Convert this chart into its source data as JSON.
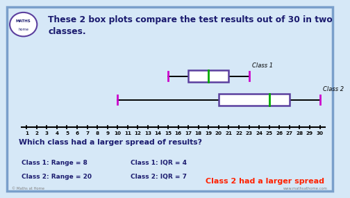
{
  "title": "These 2 box plots compare the test results out of 30 in two\nclasses.",
  "class1": {
    "label": "Class 1",
    "min": 15,
    "q1": 17,
    "median": 19,
    "q3": 21,
    "max": 23,
    "range_text": "Class 1: Range = 8",
    "iqr_text": "Class 1: IQR = 4"
  },
  "class2": {
    "label": "Class 2",
    "min": 10,
    "q1": 20,
    "median": 25,
    "q3": 27,
    "max": 30,
    "range_text": "Class 2: Range = 20",
    "iqr_text": "Class 2: IQR = 7"
  },
  "axis_min": 1,
  "axis_max": 30,
  "question": "Which class had a larger spread of results?",
  "answer": "Class 2 had a larger spread",
  "box_color": "#5b3f9e",
  "median_color": "#00aa00",
  "whisker_color": "#cc00cc",
  "bg_color": "#d6e8f7",
  "border_color": "#7a9fcb",
  "text_color_dark": "#1a1a6e",
  "answer_color": "#ff2200",
  "website": "www.mathsathome.com"
}
